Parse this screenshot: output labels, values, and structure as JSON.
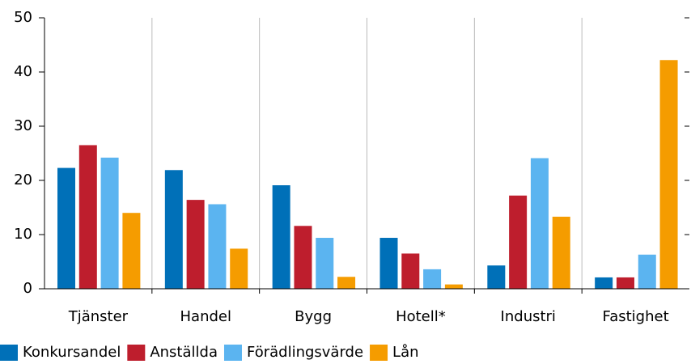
{
  "chart_data": {
    "type": "bar",
    "categories": [
      "Tjänster",
      "Handel",
      "Bygg",
      "Hotell*",
      "Industri",
      "Fastighet"
    ],
    "series": [
      {
        "name": "Konkursandel",
        "color": "#0070b8",
        "values": [
          22.3,
          21.9,
          19.1,
          9.4,
          4.3,
          2.1
        ]
      },
      {
        "name": "Anställda",
        "color": "#be1e2d",
        "values": [
          26.5,
          16.4,
          11.6,
          6.5,
          17.2,
          2.1
        ]
      },
      {
        "name": "Förädlingsvärde",
        "color": "#5bb4f0",
        "values": [
          24.2,
          15.6,
          9.4,
          3.6,
          24.1,
          6.3
        ]
      },
      {
        "name": "Lån",
        "color": "#f59c00",
        "values": [
          14.0,
          7.4,
          2.2,
          0.8,
          13.3,
          42.2
        ]
      }
    ],
    "ylim": [
      0,
      50
    ],
    "yticks": [
      0,
      10,
      20,
      30,
      40,
      50
    ],
    "grid": true,
    "legend": "bottom"
  }
}
